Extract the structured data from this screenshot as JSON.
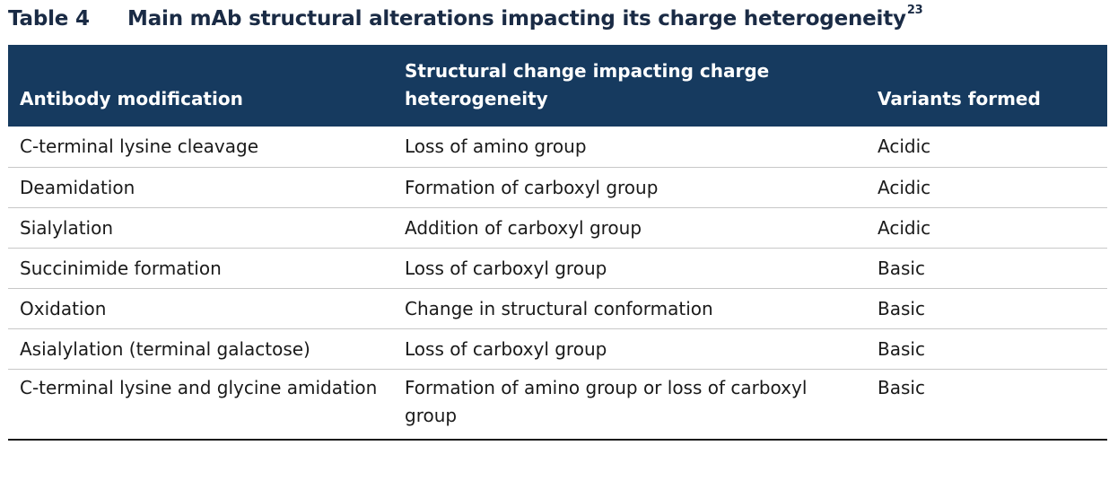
{
  "caption": {
    "label": "Table 4",
    "title": "Main mAb structural alterations impacting its charge heterogeneity",
    "superscript": "23"
  },
  "table": {
    "headers": [
      "Antibody modification",
      "Structural change impacting charge heterogeneity",
      "Variants formed"
    ],
    "rows": [
      [
        "C-terminal lysine cleavage",
        "Loss of amino group",
        "Acidic"
      ],
      [
        "Deamidation",
        "Formation of carboxyl group",
        "Acidic"
      ],
      [
        "Sialylation",
        "Addition of carboxyl group",
        "Acidic"
      ],
      [
        "Succinimide formation",
        "Loss of carboxyl group",
        "Basic"
      ],
      [
        "Oxidation",
        "Change in structural conformation",
        "Basic"
      ],
      [
        "Asialylation (terminal galactose)",
        "Loss of carboxyl group",
        "Basic"
      ],
      [
        "C-terminal lysine and glycine amidation",
        "Formation of amino group or loss of carboxyl group",
        "Basic"
      ]
    ]
  },
  "colors": {
    "header_background": "#163a5f",
    "header_text": "#ffffff",
    "row_divider": "#c8c8c8"
  }
}
